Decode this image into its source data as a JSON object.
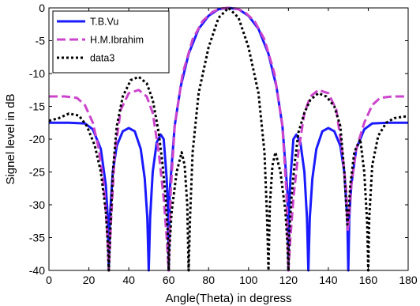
{
  "chart_data": {
    "type": "line",
    "xlabel": "Angle(Theta) in degress",
    "ylabel": "Signel level in dB",
    "xlim": [
      0,
      180
    ],
    "ylim": [
      -40,
      0
    ],
    "x_ticks": [
      0,
      20,
      40,
      60,
      80,
      100,
      120,
      140,
      160,
      180
    ],
    "y_ticks": [
      0,
      -5,
      -10,
      -15,
      -20,
      -25,
      -30,
      -35,
      -40
    ],
    "grid": false,
    "legend_position": "top-left",
    "series": [
      {
        "name": "T.B.Vu",
        "color": "#1a1aff",
        "dash": "solid",
        "points": [
          [
            0,
            -17.5
          ],
          [
            10,
            -17.5
          ],
          [
            18,
            -17.6
          ],
          [
            22,
            -18.5
          ],
          [
            26,
            -21.5
          ],
          [
            28.5,
            -27
          ],
          [
            29.5,
            -32
          ],
          [
            30,
            -40
          ],
          [
            30.5,
            -32
          ],
          [
            32,
            -25
          ],
          [
            34,
            -21
          ],
          [
            37,
            -18.8
          ],
          [
            40,
            -18.3
          ],
          [
            43,
            -18.8
          ],
          [
            46,
            -21.5
          ],
          [
            48,
            -26
          ],
          [
            49.3,
            -32
          ],
          [
            50,
            -40
          ],
          [
            50.7,
            -32
          ],
          [
            52,
            -25
          ],
          [
            54,
            -20.5
          ],
          [
            56,
            -19.3
          ],
          [
            57.5,
            -20
          ],
          [
            59,
            -26
          ],
          [
            59.8,
            -32
          ],
          [
            60,
            -40
          ],
          [
            60.5,
            -28
          ],
          [
            63,
            -18
          ],
          [
            66,
            -12
          ],
          [
            70,
            -7
          ],
          [
            75,
            -3.2
          ],
          [
            80,
            -1.2
          ],
          [
            85,
            -0.2
          ],
          [
            90,
            0
          ],
          [
            95,
            -0.2
          ],
          [
            100,
            -1.2
          ],
          [
            105,
            -3.2
          ],
          [
            110,
            -7
          ],
          [
            114,
            -12
          ],
          [
            117,
            -18
          ],
          [
            119.5,
            -28
          ],
          [
            120,
            -40
          ],
          [
            120.2,
            -32
          ],
          [
            121,
            -26
          ],
          [
            122.5,
            -20
          ],
          [
            124,
            -19.3
          ],
          [
            126,
            -20.5
          ],
          [
            128,
            -25
          ],
          [
            129.3,
            -32
          ],
          [
            130,
            -40
          ],
          [
            130.7,
            -32
          ],
          [
            132,
            -26
          ],
          [
            134,
            -21.5
          ],
          [
            137,
            -18.8
          ],
          [
            140,
            -18.3
          ],
          [
            143,
            -18.8
          ],
          [
            146,
            -21
          ],
          [
            148,
            -25
          ],
          [
            149.5,
            -32
          ],
          [
            150,
            -40
          ],
          [
            150.5,
            -32
          ],
          [
            151.5,
            -27
          ],
          [
            154,
            -21.5
          ],
          [
            158,
            -18.5
          ],
          [
            162,
            -17.6
          ],
          [
            170,
            -17.5
          ],
          [
            180,
            -17.5
          ]
        ]
      },
      {
        "name": "H.M.Ibrahim",
        "color": "#cc44cc",
        "dash": "dashed",
        "points": [
          [
            0,
            -13.5
          ],
          [
            8,
            -13.5
          ],
          [
            14,
            -13.7
          ],
          [
            18,
            -14.8
          ],
          [
            22,
            -17.5
          ],
          [
            25,
            -21.5
          ],
          [
            27.5,
            -27
          ],
          [
            29,
            -33
          ],
          [
            30,
            -40
          ],
          [
            31,
            -33
          ],
          [
            33,
            -22
          ],
          [
            36,
            -15.5
          ],
          [
            40,
            -13
          ],
          [
            45,
            -12.5
          ],
          [
            49,
            -13.5
          ],
          [
            52,
            -16
          ],
          [
            55,
            -22
          ],
          [
            57.5,
            -29
          ],
          [
            59,
            -35
          ],
          [
            60,
            -40
          ],
          [
            61,
            -28
          ],
          [
            63,
            -18
          ],
          [
            67,
            -10
          ],
          [
            72,
            -4.8
          ],
          [
            77,
            -2
          ],
          [
            82,
            -0.6
          ],
          [
            86,
            -0.1
          ],
          [
            90,
            0
          ],
          [
            94,
            -0.1
          ],
          [
            98,
            -0.6
          ],
          [
            103,
            -2
          ],
          [
            108,
            -4.8
          ],
          [
            113,
            -10
          ],
          [
            117,
            -18
          ],
          [
            119,
            -28
          ],
          [
            120,
            -40
          ],
          [
            121,
            -35
          ],
          [
            122.5,
            -29
          ],
          [
            125,
            -22
          ],
          [
            128,
            -16
          ],
          [
            131,
            -13.5
          ],
          [
            135,
            -12.5
          ],
          [
            140,
            -13
          ],
          [
            144,
            -15.5
          ],
          [
            147,
            -22
          ],
          [
            149,
            -28
          ],
          [
            149.8,
            -34
          ],
          [
            150.3,
            -32
          ],
          [
            151.5,
            -27
          ],
          [
            154,
            -21.5
          ],
          [
            158,
            -17.5
          ],
          [
            162,
            -14.8
          ],
          [
            166,
            -13.7
          ],
          [
            172,
            -13.5
          ],
          [
            180,
            -13.5
          ]
        ]
      },
      {
        "name": "data3",
        "color": "#000000",
        "dash": "dotted",
        "points": [
          [
            0,
            -17.2
          ],
          [
            5,
            -16.8
          ],
          [
            10,
            -16.1
          ],
          [
            15,
            -16.4
          ],
          [
            19,
            -18
          ],
          [
            23,
            -21
          ],
          [
            26,
            -25
          ],
          [
            28.5,
            -31
          ],
          [
            29.5,
            -36
          ],
          [
            30,
            -40
          ],
          [
            30.5,
            -36
          ],
          [
            32,
            -25
          ],
          [
            34,
            -18
          ],
          [
            37,
            -13.5
          ],
          [
            41,
            -11
          ],
          [
            45,
            -10.5
          ],
          [
            49,
            -11.5
          ],
          [
            52,
            -14
          ],
          [
            55,
            -19
          ],
          [
            57,
            -24
          ],
          [
            58.5,
            -29
          ],
          [
            59.5,
            -34
          ],
          [
            60,
            -40
          ],
          [
            60.5,
            -36
          ],
          [
            61.5,
            -31
          ],
          [
            64,
            -25
          ],
          [
            66.5,
            -22
          ],
          [
            68,
            -24
          ],
          [
            69.3,
            -30
          ],
          [
            70,
            -40
          ],
          [
            70.7,
            -32
          ],
          [
            72,
            -22
          ],
          [
            75,
            -13
          ],
          [
            80,
            -6
          ],
          [
            85,
            -1.5
          ],
          [
            90,
            0
          ],
          [
            95,
            -1.5
          ],
          [
            100,
            -6
          ],
          [
            105,
            -13
          ],
          [
            108,
            -22
          ],
          [
            109.3,
            -32
          ],
          [
            110,
            -40
          ],
          [
            110.7,
            -30
          ],
          [
            112,
            -24
          ],
          [
            113.5,
            -22
          ],
          [
            116,
            -25
          ],
          [
            118.5,
            -31
          ],
          [
            119.5,
            -36
          ],
          [
            120,
            -40
          ],
          [
            120.5,
            -34
          ],
          [
            121.5,
            -29
          ],
          [
            123,
            -24
          ],
          [
            125,
            -19
          ],
          [
            128,
            -16
          ],
          [
            131,
            -14
          ],
          [
            135,
            -13
          ],
          [
            139,
            -13.5
          ],
          [
            143,
            -15
          ],
          [
            146,
            -18
          ],
          [
            148,
            -25
          ],
          [
            149.5,
            -33
          ],
          [
            150.2,
            -31
          ],
          [
            151,
            -27
          ],
          [
            153,
            -22
          ],
          [
            156,
            -20
          ],
          [
            158,
            -25
          ],
          [
            159.5,
            -33
          ],
          [
            160,
            -40
          ],
          [
            160.5,
            -32
          ],
          [
            162,
            -24
          ],
          [
            165,
            -19.5
          ],
          [
            169,
            -17.5
          ],
          [
            173,
            -16.8
          ],
          [
            177,
            -16.6
          ],
          [
            180,
            -16.5
          ]
        ]
      }
    ]
  }
}
